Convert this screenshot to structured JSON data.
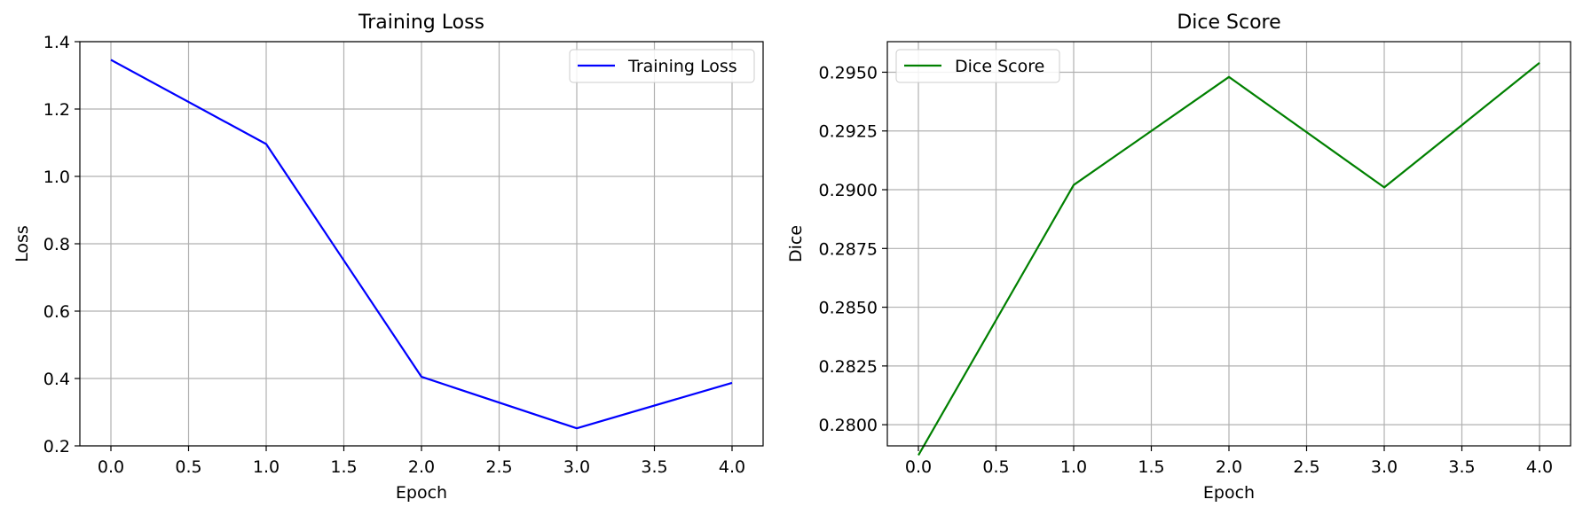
{
  "chart_data": [
    {
      "type": "line",
      "title": "Training Loss",
      "xlabel": "Epoch",
      "ylabel": "Loss",
      "xlim": [
        -0.2,
        4.2
      ],
      "ylim": [
        0.2,
        1.4
      ],
      "xticks": [
        "0.0",
        "0.5",
        "1.0",
        "1.5",
        "2.0",
        "2.5",
        "3.0",
        "3.5",
        "4.0"
      ],
      "yticks": [
        "0.2",
        "0.4",
        "0.6",
        "0.8",
        "1.0",
        "1.2",
        "1.4"
      ],
      "grid": true,
      "legend_position": "top-right",
      "series": [
        {
          "name": "Training Loss",
          "color": "#0000ff",
          "x": [
            0,
            1,
            2,
            3,
            4
          ],
          "y": [
            1.346,
            1.096,
            0.405,
            0.252,
            0.387
          ]
        }
      ]
    },
    {
      "type": "line",
      "title": "Dice Score",
      "xlabel": "Epoch",
      "ylabel": "Dice",
      "xlim": [
        -0.2,
        4.2
      ],
      "ylim": [
        0.2791,
        0.2963
      ],
      "xticks": [
        "0.0",
        "0.5",
        "1.0",
        "1.5",
        "2.0",
        "2.5",
        "3.0",
        "3.5",
        "4.0"
      ],
      "yticks": [
        "0.2800",
        "0.2825",
        "0.2850",
        "0.2875",
        "0.2900",
        "0.2925",
        "0.2950"
      ],
      "grid": true,
      "legend_position": "top-left",
      "series": [
        {
          "name": "Dice Score",
          "color": "#008000",
          "x": [
            0,
            1,
            2,
            3,
            4
          ],
          "y": [
            0.2787,
            0.2902,
            0.2948,
            0.2901,
            0.2954
          ]
        }
      ]
    }
  ]
}
